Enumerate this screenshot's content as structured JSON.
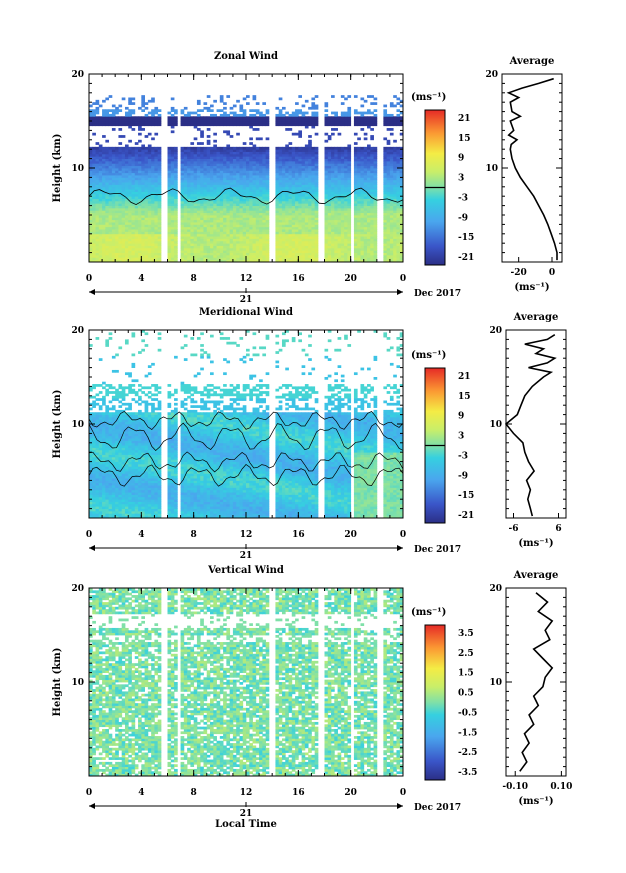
{
  "chart_data": [
    {
      "type": "heatmap",
      "title": "Zonal Wind",
      "ylabel": "Height (km)",
      "unit_label": "(ms⁻¹)",
      "x_ticks": [
        "0",
        "4",
        "8",
        "12",
        "16",
        "20",
        "0"
      ],
      "y_ticks": [
        "20",
        "10"
      ],
      "ylim": [
        0,
        20
      ],
      "date_label": "21",
      "date_suffix": "Dec 2017",
      "colorbar_ticks": [
        "21",
        "15",
        "9",
        "3",
        "-3",
        "-9",
        "-15",
        "-21"
      ],
      "colorbar_range": [
        -24,
        24
      ],
      "field": "zonal",
      "average": {
        "title": "Average",
        "x_ticks": [
          "-20",
          "0"
        ],
        "xlim": [
          -30,
          6
        ],
        "unit_label": "(ms⁻¹)",
        "height": [
          0.2,
          1,
          2,
          3,
          4,
          5,
          6,
          7,
          8,
          9,
          10,
          11,
          12,
          12.5,
          13,
          13.5,
          14,
          15,
          15.5,
          16,
          17,
          17.5,
          18,
          18.5,
          19,
          19.5
        ],
        "values": [
          3,
          3,
          1.5,
          -0.5,
          -2.5,
          -5,
          -8,
          -11,
          -15,
          -19,
          -22,
          -24,
          -25,
          -24.5,
          -21,
          -26,
          -23,
          -25,
          -19,
          -24,
          -25,
          -20,
          -26,
          -18,
          -8,
          1
        ]
      }
    },
    {
      "type": "heatmap",
      "title": "Meridional Wind",
      "ylabel": "Height (km)",
      "unit_label": "(ms⁻¹)",
      "x_ticks": [
        "0",
        "4",
        "8",
        "12",
        "16",
        "20",
        "0"
      ],
      "y_ticks": [
        "20",
        "10"
      ],
      "ylim": [
        0,
        20
      ],
      "date_label": "21",
      "date_suffix": "Dec 2017",
      "colorbar_ticks": [
        "21",
        "15",
        "9",
        "3",
        "-3",
        "-9",
        "-15",
        "-21"
      ],
      "colorbar_range": [
        -24,
        24
      ],
      "field": "meridional",
      "average": {
        "title": "Average",
        "x_ticks": [
          "-6",
          "6"
        ],
        "xlim": [
          -8,
          8
        ],
        "unit_label": "(ms⁻¹)",
        "height": [
          0.2,
          1,
          2,
          3,
          4,
          5,
          6,
          7,
          8,
          9,
          10,
          11,
          12,
          13,
          14,
          15,
          15.5,
          16,
          16.5,
          17,
          17.5,
          18,
          18.5,
          19,
          19.5
        ],
        "values": [
          -1,
          -1.5,
          -2.2,
          -1.5,
          -2.5,
          -0.5,
          -2,
          -3,
          -3.5,
          -6,
          -8,
          -5,
          -4,
          -3,
          -1,
          2,
          4,
          -2,
          3,
          5,
          0,
          2,
          -3,
          3,
          5
        ]
      }
    },
    {
      "type": "heatmap",
      "title": "Vertical Wind",
      "ylabel": "Height (km)",
      "xlabel": "Local Time",
      "unit_label": "(ms⁻¹)",
      "x_ticks": [
        "0",
        "4",
        "8",
        "12",
        "16",
        "20",
        "0"
      ],
      "y_ticks": [
        "20",
        "10"
      ],
      "ylim": [
        0,
        20
      ],
      "date_label": "21",
      "date_suffix": "Dec 2017",
      "colorbar_ticks": [
        "3.5",
        "2.5",
        "1.5",
        "0.5",
        "-0.5",
        "-1.5",
        "-2.5",
        "-3.5"
      ],
      "colorbar_range": [
        -4,
        4
      ],
      "field": "vertical",
      "average": {
        "title": "Average",
        "x_ticks": [
          "-0.10",
          "0.10"
        ],
        "xlim": [
          -0.14,
          0.12
        ],
        "unit_label": "(ms⁻¹)",
        "height": [
          0.5,
          1.5,
          2.5,
          3.5,
          4.5,
          5.5,
          6.5,
          7.5,
          8.5,
          9.5,
          10.5,
          11.5,
          12.5,
          13.5,
          14.5,
          15.5,
          16.5,
          17.5,
          18.5,
          19.5
        ],
        "values": [
          -0.08,
          -0.05,
          -0.07,
          -0.04,
          -0.06,
          -0.02,
          -0.04,
          0.0,
          -0.02,
          0.02,
          0.03,
          0.06,
          0.02,
          -0.02,
          0.05,
          0.03,
          0.06,
          0.0,
          0.04,
          -0.01
        ]
      }
    }
  ]
}
